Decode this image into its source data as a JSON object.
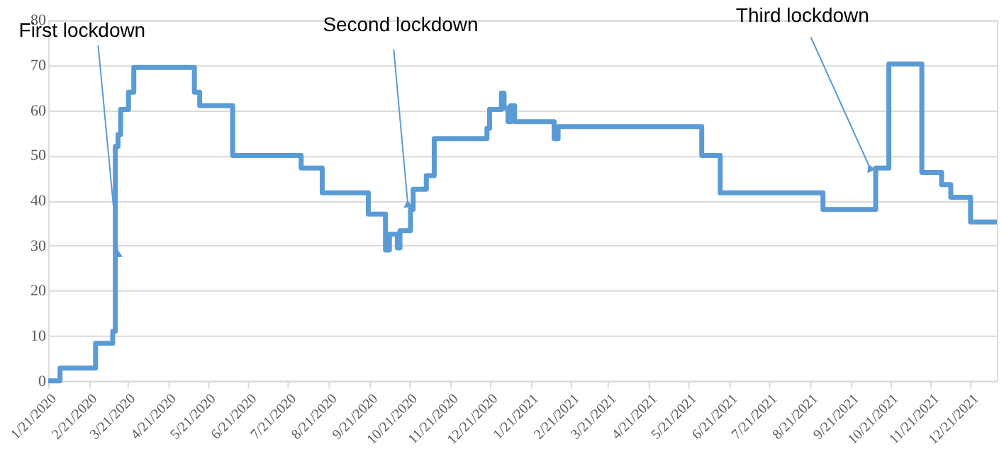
{
  "chart_data": {
    "type": "step",
    "x": [
      "2020-01-21",
      "2020-01-30",
      "2020-02-26",
      "2020-03-10",
      "2020-03-12",
      "2020-03-14",
      "2020-03-16",
      "2020-03-22",
      "2020-03-26",
      "2020-05-11",
      "2020-05-15",
      "2020-06-09",
      "2020-07-31",
      "2020-08-16",
      "2020-09-20",
      "2020-10-03",
      "2020-10-06",
      "2020-10-12",
      "2020-10-14",
      "2020-10-22",
      "2020-10-24",
      "2020-11-03",
      "2020-11-09",
      "2020-12-19",
      "2020-12-21",
      "2020-12-30",
      "2021-01-01",
      "2021-01-04",
      "2021-01-06",
      "2021-01-09",
      "2021-02-08",
      "2021-02-11",
      "2021-05-31",
      "2021-06-14",
      "2021-08-31",
      "2021-10-10",
      "2021-10-20",
      "2021-11-14",
      "2021-11-29",
      "2021-12-06",
      "2021-12-21",
      "2022-01-10"
    ],
    "series": [
      {
        "color": "#5b9bd5",
        "values": [
          0,
          2.8,
          8.3,
          11,
          52,
          54.6,
          60.2,
          64,
          69.5,
          64,
          61,
          50,
          47.2,
          41.7,
          37,
          29,
          32.5,
          29.5,
          33.3,
          38,
          42.5,
          45.5,
          53.7,
          56,
          60.2,
          63.8,
          60.5,
          57.5,
          61,
          57.5,
          53.7,
          56.4,
          50,
          41.7,
          38,
          47.2,
          70.3,
          46.2,
          43.5,
          40.7,
          35.2,
          35.2
        ]
      }
    ],
    "xlim": [
      "2020-01-21",
      "2022-01-10"
    ],
    "xticks": [
      {
        "value": "2020-01-21",
        "label": "1/21/2020"
      },
      {
        "value": "2020-02-21",
        "label": "2/21/2020"
      },
      {
        "value": "2020-03-21",
        "label": "3/21/2020"
      },
      {
        "value": "2020-04-21",
        "label": "4/21/2020"
      },
      {
        "value": "2020-05-21",
        "label": "5/21/2020"
      },
      {
        "value": "2020-06-21",
        "label": "6/21/2020"
      },
      {
        "value": "2020-07-21",
        "label": "7/21/2020"
      },
      {
        "value": "2020-08-21",
        "label": "8/21/2020"
      },
      {
        "value": "2020-09-21",
        "label": "9/21/2020"
      },
      {
        "value": "2020-10-21",
        "label": "10/21/2020"
      },
      {
        "value": "2020-11-21",
        "label": "11/21/2020"
      },
      {
        "value": "2020-12-21",
        "label": "12/21/2020"
      },
      {
        "value": "2021-01-21",
        "label": "1/21/2021"
      },
      {
        "value": "2021-02-21",
        "label": "2/21/2021"
      },
      {
        "value": "2021-03-21",
        "label": "3/21/2021"
      },
      {
        "value": "2021-04-21",
        "label": "4/21/2021"
      },
      {
        "value": "2021-05-21",
        "label": "5/21/2021"
      },
      {
        "value": "2021-06-21",
        "label": "6/21/2021"
      },
      {
        "value": "2021-07-21",
        "label": "7/21/2021"
      },
      {
        "value": "2021-08-21",
        "label": "8/21/2021"
      },
      {
        "value": "2021-09-21",
        "label": "9/21/2021"
      },
      {
        "value": "2021-10-21",
        "label": "10/21/2021"
      },
      {
        "value": "2021-11-21",
        "label": "11/21/2021"
      },
      {
        "value": "2021-12-21",
        "label": "12/21/2021"
      }
    ],
    "ylim": [
      0,
      80
    ],
    "yticks": [
      0,
      10,
      20,
      30,
      40,
      50,
      60,
      70,
      80
    ],
    "grid": "y",
    "marker": "none",
    "line_style": "solid",
    "annotations": [
      {
        "text": "First lockdown",
        "x": "2020-03-14",
        "y": 28
      },
      {
        "text": "Second lockdown",
        "x": "2020-10-20",
        "y": 39
      },
      {
        "text": "Third lockdown",
        "x": "2021-10-06",
        "y": 47
      }
    ]
  }
}
